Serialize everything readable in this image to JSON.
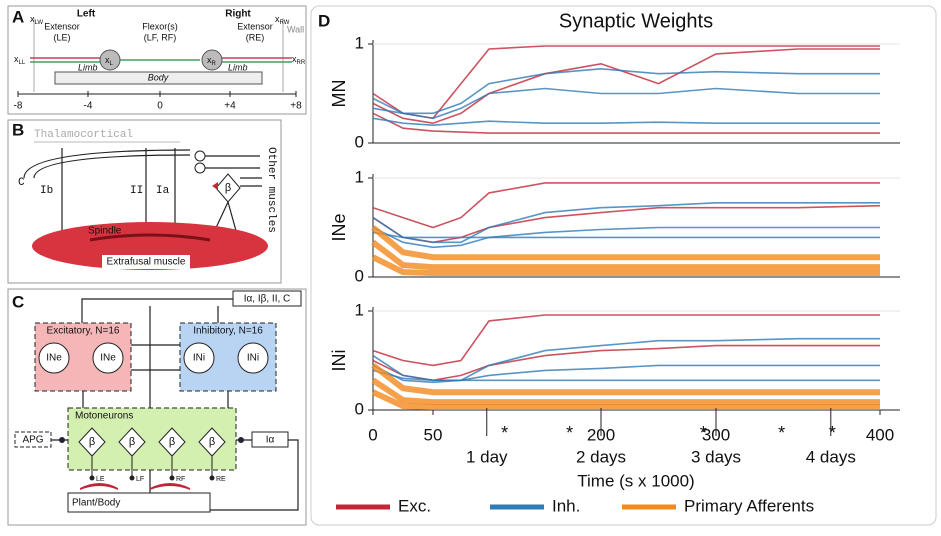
{
  "panel_a": {
    "letter": "A",
    "left": "Left",
    "right": "Right",
    "extensor_left": [
      "Extensor",
      "(LE)"
    ],
    "flexor": [
      "Flexor(s)",
      "(LF, RF)"
    ],
    "extensor_right": [
      "Extensor",
      "(RE)"
    ],
    "wall": "Wall",
    "limb_left": "Limb",
    "limb_right": "Limb",
    "body": "Body",
    "points": [
      {
        "base": "x",
        "sub": "LW"
      },
      {
        "base": "x",
        "sub": "RW"
      },
      {
        "base": "x",
        "sub": "LL"
      },
      {
        "base": "x",
        "sub": "RR"
      },
      {
        "base": "x",
        "sub": "L"
      },
      {
        "base": "x",
        "sub": "R"
      }
    ],
    "axis_ticks": [
      "-8",
      "-4",
      "0",
      "+4",
      "+8"
    ]
  },
  "panel_b": {
    "letter": "B",
    "thalamocortical": "Thalamocortical",
    "c": "C",
    "ib": "Ib",
    "ii": "II",
    "ia": "Ia",
    "beta": "β",
    "other_muscles": "Other muscles",
    "spindle": "Spindle",
    "extrafusal": "Extrafusal muscle"
  },
  "panel_c": {
    "letter": "C",
    "excitatory": "Excitatory, N=16",
    "inhibitory": "Inhibitory, N=16",
    "ine": [
      "INe",
      "INe"
    ],
    "ini": [
      "INi",
      "INi"
    ],
    "inputs": "Iα, Iβ, II, C",
    "motoneurons": "Motoneurons",
    "beta": [
      "β",
      "β",
      "β",
      "β"
    ],
    "outputs": [
      "LE",
      "LF",
      "RF",
      "RE"
    ],
    "apg": "APG",
    "ia": "Iα",
    "plant": "Plant/Body"
  },
  "chart_data": {
    "type": "line",
    "letter": "D",
    "title": "Synaptic Weights",
    "x_label": "Time (s x 1000)",
    "xlim": [
      0,
      400
    ],
    "xticks": [
      0,
      50,
      200,
      300,
      400
    ],
    "day_markers": [
      {
        "value": 98,
        "label": "1 day"
      },
      {
        "value": 200,
        "label": "2 days"
      },
      {
        "value": 300,
        "label": "3 days"
      },
      {
        "value": 370,
        "label": "4 days"
      }
    ],
    "asterisks": [
      {
        "value": 114,
        "label": "*"
      },
      {
        "value": 172,
        "label": "*"
      },
      {
        "value": 289,
        "label": "*"
      },
      {
        "value": 340,
        "label": "*"
      },
      {
        "value": 371,
        "label": "*"
      }
    ],
    "legend": [
      {
        "name": "Exc.",
        "color": "#c0283a"
      },
      {
        "name": "Inh.",
        "color": "#2e7bb5"
      },
      {
        "name": "Primary Afferents",
        "color": "#f28a1e"
      }
    ],
    "x": [
      0,
      25,
      50,
      75,
      100,
      150,
      200,
      250,
      300,
      350,
      400
    ],
    "plots": [
      {
        "ylabel": "MN",
        "ylim": [
          0,
          1
        ],
        "yticks": [
          0,
          1
        ],
        "series": [
          {
            "name": "Exc.",
            "color": "#c0283a",
            "values": [
              0.5,
              0.3,
              0.25,
              0.6,
              0.95,
              0.98,
              0.98,
              0.98,
              0.98,
              0.98,
              0.98
            ]
          },
          {
            "name": "Exc.",
            "color": "#c0283a",
            "values": [
              0.3,
              0.15,
              0.12,
              0.11,
              0.1,
              0.1,
              0.1,
              0.1,
              0.1,
              0.1,
              0.1
            ]
          },
          {
            "name": "Exc.",
            "color": "#c0283a",
            "values": [
              0.4,
              0.25,
              0.2,
              0.3,
              0.5,
              0.7,
              0.8,
              0.6,
              0.9,
              0.95,
              0.95
            ]
          },
          {
            "name": "Inh.",
            "color": "#2e7bb5",
            "values": [
              0.45,
              0.3,
              0.25,
              0.35,
              0.5,
              0.55,
              0.5,
              0.5,
              0.55,
              0.5,
              0.5
            ]
          },
          {
            "name": "Inh.",
            "color": "#2e7bb5",
            "values": [
              0.25,
              0.2,
              0.18,
              0.2,
              0.22,
              0.2,
              0.2,
              0.21,
              0.2,
              0.2,
              0.2
            ]
          },
          {
            "name": "Inh.",
            "color": "#2e7bb5",
            "values": [
              0.35,
              0.3,
              0.3,
              0.4,
              0.6,
              0.7,
              0.75,
              0.7,
              0.72,
              0.7,
              0.7
            ]
          }
        ]
      },
      {
        "ylabel": "INe",
        "ylim": [
          0,
          1
        ],
        "yticks": [
          0,
          1
        ],
        "series": [
          {
            "name": "Exc.",
            "color": "#c0283a",
            "values": [
              0.7,
              0.6,
              0.5,
              0.6,
              0.85,
              0.95,
              0.95,
              0.95,
              0.95,
              0.95,
              0.95
            ]
          },
          {
            "name": "Exc.",
            "color": "#c0283a",
            "values": [
              0.6,
              0.4,
              0.35,
              0.4,
              0.5,
              0.6,
              0.65,
              0.7,
              0.7,
              0.7,
              0.72
            ]
          },
          {
            "name": "Inh.",
            "color": "#2e7bb5",
            "values": [
              0.6,
              0.4,
              0.35,
              0.35,
              0.5,
              0.65,
              0.7,
              0.72,
              0.75,
              0.75,
              0.75
            ]
          },
          {
            "name": "Inh.",
            "color": "#2e7bb5",
            "values": [
              0.5,
              0.35,
              0.3,
              0.32,
              0.4,
              0.45,
              0.48,
              0.5,
              0.5,
              0.5,
              0.5
            ]
          },
          {
            "name": "Inh.",
            "color": "#2e7bb5",
            "values": [
              0.45,
              0.4,
              0.4,
              0.4,
              0.4,
              0.4,
              0.4,
              0.4,
              0.4,
              0.4,
              0.4
            ]
          },
          {
            "name": "Primary Afferents",
            "color": "#f28a1e",
            "values": [
              0.5,
              0.25,
              0.2,
              0.2,
              0.2,
              0.2,
              0.2,
              0.2,
              0.2,
              0.2,
              0.2
            ]
          },
          {
            "name": "Primary Afferents",
            "color": "#f28a1e",
            "values": [
              0.35,
              0.12,
              0.1,
              0.1,
              0.1,
              0.1,
              0.1,
              0.1,
              0.1,
              0.1,
              0.1
            ]
          },
          {
            "name": "Primary Afferents",
            "color": "#f28a1e",
            "values": [
              0.2,
              0.05,
              0.04,
              0.04,
              0.04,
              0.04,
              0.04,
              0.04,
              0.04,
              0.04,
              0.04
            ]
          }
        ]
      },
      {
        "ylabel": "INi",
        "ylim": [
          0,
          1
        ],
        "yticks": [
          0,
          1
        ],
        "series": [
          {
            "name": "Exc.",
            "color": "#c0283a",
            "values": [
              0.6,
              0.5,
              0.45,
              0.5,
              0.9,
              0.96,
              0.96,
              0.96,
              0.96,
              0.96,
              0.96
            ]
          },
          {
            "name": "Exc.",
            "color": "#c0283a",
            "values": [
              0.5,
              0.35,
              0.3,
              0.35,
              0.45,
              0.55,
              0.6,
              0.62,
              0.65,
              0.65,
              0.65
            ]
          },
          {
            "name": "Inh.",
            "color": "#2e7bb5",
            "values": [
              0.55,
              0.35,
              0.3,
              0.3,
              0.45,
              0.6,
              0.65,
              0.7,
              0.7,
              0.72,
              0.72
            ]
          },
          {
            "name": "Inh.",
            "color": "#2e7bb5",
            "values": [
              0.45,
              0.3,
              0.28,
              0.3,
              0.35,
              0.4,
              0.42,
              0.45,
              0.45,
              0.45,
              0.45
            ]
          },
          {
            "name": "Inh.",
            "color": "#2e7bb5",
            "values": [
              0.4,
              0.32,
              0.3,
              0.3,
              0.3,
              0.3,
              0.3,
              0.3,
              0.3,
              0.3,
              0.3
            ]
          },
          {
            "name": "Primary Afferents",
            "color": "#f28a1e",
            "values": [
              0.45,
              0.22,
              0.18,
              0.18,
              0.18,
              0.18,
              0.18,
              0.18,
              0.18,
              0.18,
              0.18
            ]
          },
          {
            "name": "Primary Afferents",
            "color": "#f28a1e",
            "values": [
              0.3,
              0.1,
              0.08,
              0.08,
              0.08,
              0.08,
              0.08,
              0.08,
              0.08,
              0.08,
              0.08
            ]
          },
          {
            "name": "Primary Afferents",
            "color": "#f28a1e",
            "values": [
              0.18,
              0.04,
              0.03,
              0.03,
              0.03,
              0.03,
              0.03,
              0.03,
              0.03,
              0.03,
              0.03
            ]
          }
        ]
      }
    ]
  }
}
